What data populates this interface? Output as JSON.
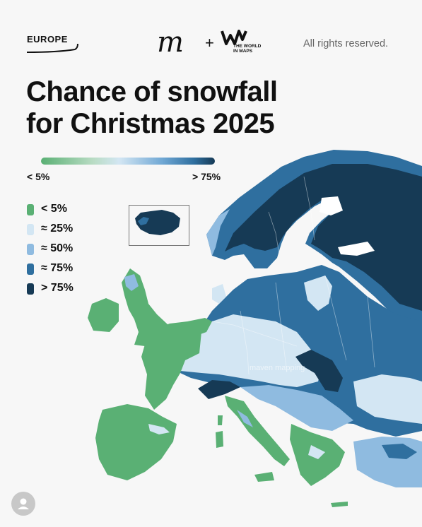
{
  "header": {
    "region": "EUROPE",
    "brand_logo": "m",
    "partner_logo_text": "THE WORLD IN MAPS",
    "plus": "+",
    "rights": "All rights reserved."
  },
  "title_line1": "Chance of snowfall",
  "title_line2": "for Christmas 2025",
  "scale": {
    "min": "< 5%",
    "max": "> 75%"
  },
  "legend": [
    {
      "label": "< 5%",
      "color": "#5ab074"
    },
    {
      "label": "≈ 25%",
      "color": "#d3e6f3"
    },
    {
      "label": "≈ 50%",
      "color": "#8fbbe0"
    },
    {
      "label": "≈ 75%",
      "color": "#2f6f9f"
    },
    {
      "label": "> 75%",
      "color": "#163a55"
    }
  ],
  "colors": {
    "green": "#5ab074",
    "light": "#d3e6f3",
    "mid": "#8fbbe0",
    "deep": "#2f6f9f",
    "darkest": "#163a55",
    "sea": "#f7f7f7"
  },
  "watermark": "maven mapping",
  "icons": {
    "avatar": "user-avatar-icon"
  }
}
